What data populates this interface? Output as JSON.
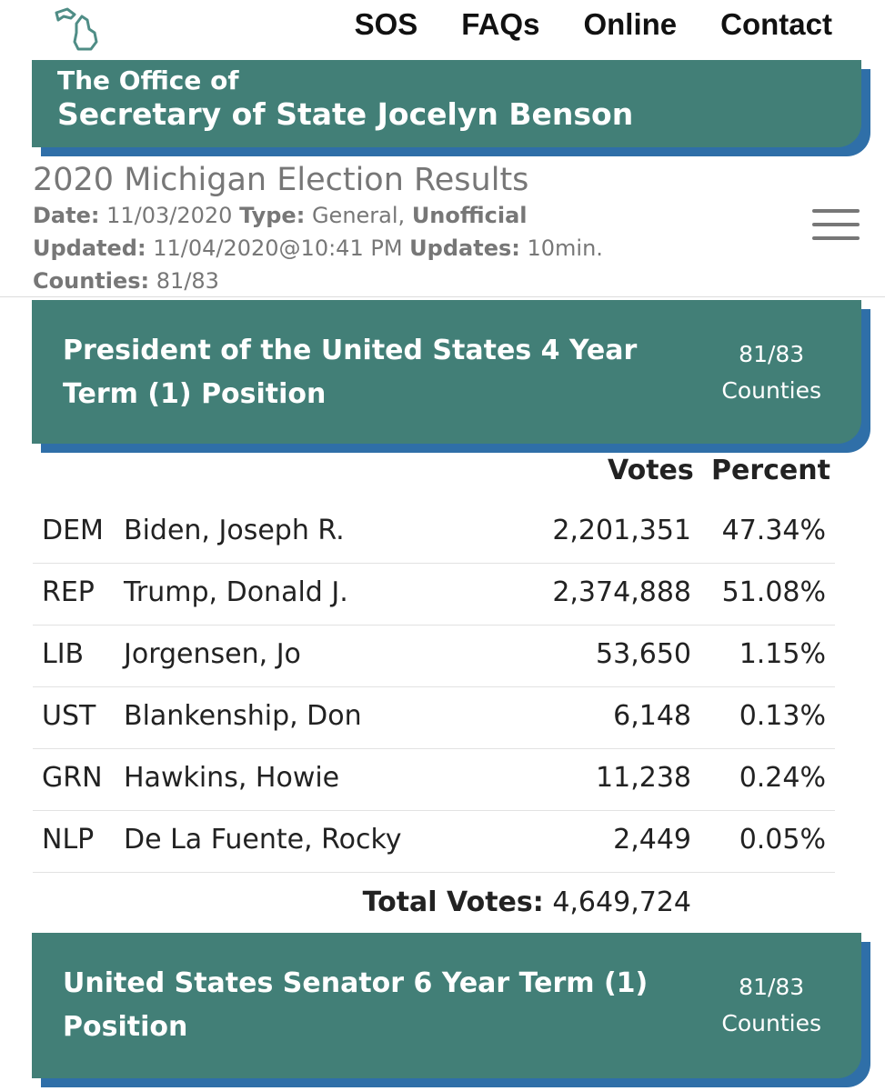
{
  "nav": {
    "items": [
      "SOS",
      "FAQs",
      "Online",
      "Contact"
    ]
  },
  "office": {
    "line1": "The Office of",
    "line2": "Secretary of State Jocelyn Benson"
  },
  "election": {
    "title": "2020 Michigan Election Results",
    "date_label": "Date:",
    "date_value": "11/03/2020",
    "type_label": "Type:",
    "type_value": "General,",
    "type_status": "Unofficial",
    "updated_label": "Updated:",
    "updated_value": "11/04/2020@10:41 PM",
    "updates_label": "Updates:",
    "updates_value": "10min.",
    "counties_label": "Counties:",
    "counties_value": "81/83"
  },
  "race1": {
    "title": "President of the United States 4 Year Term (1) Position",
    "count": "81/83",
    "count_label": "Counties",
    "col_votes": "Votes",
    "col_percent": "Percent",
    "candidates": [
      {
        "party": "DEM",
        "name": "Biden, Joseph R.",
        "votes": "2,201,351",
        "percent": "47.34%"
      },
      {
        "party": "REP",
        "name": "Trump, Donald J.",
        "votes": "2,374,888",
        "percent": "51.08%"
      },
      {
        "party": "LIB",
        "name": "Jorgensen, Jo",
        "votes": "53,650",
        "percent": "1.15%"
      },
      {
        "party": "UST",
        "name": "Blankenship, Don",
        "votes": "6,148",
        "percent": "0.13%"
      },
      {
        "party": "GRN",
        "name": "Hawkins, Howie",
        "votes": "11,238",
        "percent": "0.24%"
      },
      {
        "party": "NLP",
        "name": "De La Fuente, Rocky",
        "votes": "2,449",
        "percent": "0.05%"
      }
    ],
    "total_label": "Total Votes:",
    "total_value": "4,649,724"
  },
  "race2": {
    "title": "United States Senator 6 Year Term (1) Position",
    "count": "81/83",
    "count_label": "Counties"
  },
  "colors": {
    "card": "#427f77",
    "card_shadow": "#2f6fa8",
    "muted_text": "#777777"
  },
  "icons": {
    "logo": "michigan-state-outline-icon",
    "menu": "hamburger-menu-icon"
  }
}
